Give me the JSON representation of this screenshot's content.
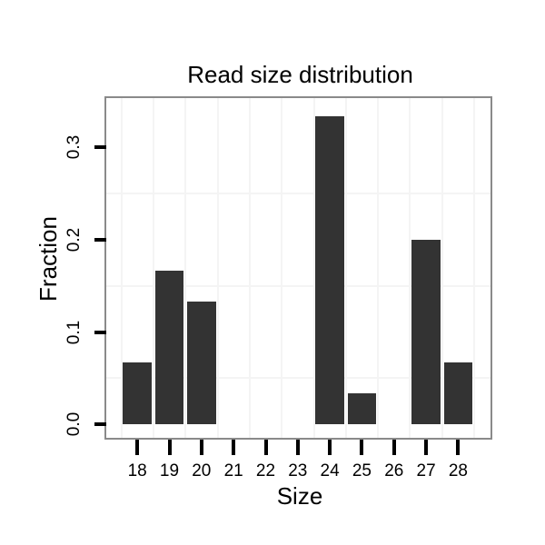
{
  "chart_data": {
    "type": "bar",
    "title": "Read size distribution",
    "xlabel": "Size",
    "ylabel": "Fraction",
    "categories": [
      "18",
      "19",
      "20",
      "21",
      "22",
      "23",
      "24",
      "25",
      "26",
      "27",
      "28"
    ],
    "values": [
      0.0667,
      0.1667,
      0.1333,
      0,
      0,
      0,
      0.3333,
      0.0333,
      0,
      0.2,
      0.0667
    ],
    "ytick_values": [
      0.0,
      0.1,
      0.2,
      0.3
    ],
    "ytick_labels": [
      "0.0",
      "0.1",
      "0.2",
      "0.3"
    ],
    "minor_gridline_values": [
      0.05,
      0.15,
      0.25
    ],
    "ylim": [
      -0.015,
      0.353
    ],
    "grid": "light vertical lines between categories, light horizontal lines at 0.05 steps",
    "legend": "none",
    "colors": {
      "bar_fill": "#333333",
      "panel_border": "#8a8a8a",
      "gridline": "#f4f4f4",
      "background": "#ffffff",
      "text": "#000000",
      "tick": "#000000"
    }
  }
}
